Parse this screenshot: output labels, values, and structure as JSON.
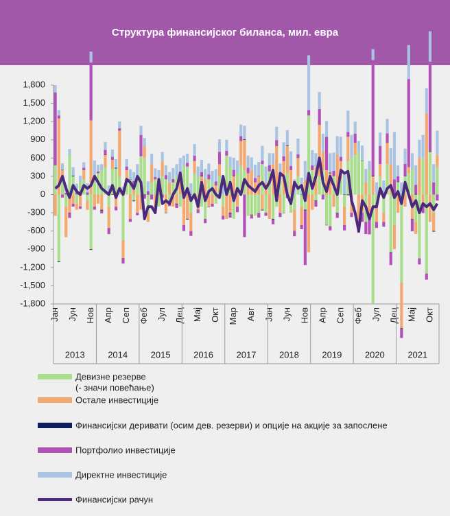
{
  "chart_data": {
    "type": "bar",
    "title": "Структура финансијског биланса, мил. евра",
    "categories": [
      "Јан",
      null,
      null,
      null,
      null,
      "Јун",
      null,
      null,
      null,
      null,
      "Нов",
      null,
      null,
      null,
      null,
      "Апр",
      null,
      null,
      null,
      null,
      "Сеп",
      null,
      null,
      null,
      null,
      "Феб",
      null,
      null,
      null,
      null,
      "Јул",
      null,
      null,
      null,
      null,
      "Дец",
      null,
      null,
      null,
      null,
      "Мај",
      null,
      null,
      null,
      null,
      "Окт",
      null,
      null,
      null,
      null,
      "Мар",
      null,
      null,
      null,
      null,
      "Авг",
      null,
      null,
      null,
      null,
      "Јан",
      null,
      null,
      null,
      null,
      "Јун",
      null,
      null,
      null,
      null,
      "Нов",
      null,
      null,
      null,
      null,
      "Апр",
      null,
      null,
      null,
      null,
      "Сеп",
      null,
      null,
      null,
      null,
      "Феб",
      null,
      null,
      null,
      null,
      "Јул",
      null,
      null,
      null,
      null,
      "Дец",
      null,
      null,
      null,
      null,
      "Мај",
      null,
      null,
      null,
      null,
      "Окт",
      null,
      null
    ],
    "years": [
      "2013",
      "2014",
      "2015",
      "2016",
      "2017",
      "2018",
      "2019",
      "2020",
      "2021"
    ],
    "ylim": [
      -1800,
      1800
    ],
    "yticks": [
      {
        "value": -1800,
        "label": "-1,800"
      },
      {
        "value": -1500,
        "label": "-1,500"
      },
      {
        "value": -1200,
        "label": "-1,200"
      },
      -900,
      -600,
      -300,
      0,
      300,
      600,
      900,
      {
        "value": 1200,
        "label": "1,200"
      },
      {
        "value": 1500,
        "label": "1,500"
      },
      {
        "value": 1800,
        "label": "1,800"
      }
    ],
    "grid": false,
    "series": [
      {
        "name": "Девизне резерве",
        "note": "(- значи повећање)",
        "color": "#a9df8c",
        "values": [
          480,
          -1100,
          300,
          -200,
          650,
          300,
          -150,
          200,
          250,
          -100,
          -900,
          300,
          350,
          400,
          450,
          -200,
          420,
          430,
          300,
          -750,
          200,
          250,
          -100,
          300,
          630,
          600,
          -300,
          200,
          250,
          -200,
          300,
          250,
          -150,
          200,
          300,
          -200,
          470,
          460,
          -300,
          350,
          300,
          -200,
          -400,
          250,
          200,
          -150,
          300,
          -200,
          640,
          460,
          -400,
          350,
          480,
          400,
          -350,
          -330,
          -350,
          -300,
          500,
          -300,
          380,
          -400,
          -200,
          250,
          -300,
          350,
          -300,
          -250,
          300,
          -200,
          -250,
          1300,
          400,
          -100,
          300,
          400,
          -500,
          -520,
          300,
          -300,
          250,
          -200,
          550,
          600,
          650,
          700,
          550,
          -450,
          400,
          -1800,
          -200,
          300,
          -300,
          500,
          -950,
          -500,
          200,
          -1450,
          300,
          350,
          400,
          -450,
          -1050,
          600,
          -1300,
          700,
          -300,
          450
        ]
      },
      {
        "name": "Остале инвестиције",
        "color": "#f4a86e",
        "values": [
          -350,
          1250,
          100,
          -500,
          -300,
          -150,
          -100,
          -200,
          150,
          -150,
          1220,
          -200,
          -150,
          -250,
          200,
          -350,
          150,
          -200,
          750,
          -300,
          200,
          -400,
          150,
          -300,
          -250,
          200,
          -150,
          300,
          -200,
          150,
          250,
          -300,
          200,
          -200,
          -150,
          300,
          -500,
          -400,
          -300,
          200,
          -250,
          300,
          250,
          -200,
          -150,
          150,
          200,
          -150,
          -400,
          -300,
          300,
          -200,
          400,
          500,
          350,
          400,
          200,
          300,
          -250,
          200,
          -400,
          500,
          800,
          -300,
          550,
          450,
          400,
          -350,
          300,
          -300,
          250,
          -950,
          -250,
          450,
          850,
          300,
          400,
          350,
          -200,
          650,
          300,
          -300,
          400,
          -300,
          200,
          -500,
          -300,
          200,
          -350,
          300,
          -250,
          200,
          -150,
          350,
          500,
          -400,
          -300,
          -750,
          -200,
          100,
          -400,
          -200,
          600,
          -150,
          1330,
          -450,
          -300,
          200
        ]
      },
      {
        "name": "Финансијски деривати (осим дев. резерви) и опције на акције за запослене",
        "color": "#0f1f5c",
        "values": [
          0,
          -10,
          5,
          0,
          -5,
          10,
          0,
          -5,
          0,
          5,
          -10,
          0,
          0,
          -10,
          5,
          0,
          -5,
          10,
          0,
          -5,
          0,
          5,
          -10,
          0,
          0,
          -10,
          5,
          0,
          -5,
          10,
          0,
          -5,
          0,
          5,
          -10,
          0,
          0,
          -10,
          5,
          0,
          -5,
          10,
          0,
          -5,
          0,
          5,
          -10,
          0,
          0,
          -10,
          5,
          0,
          -5,
          10,
          0,
          -5,
          0,
          5,
          -10,
          0,
          0,
          -10,
          5,
          0,
          -5,
          10,
          0,
          -5,
          0,
          5,
          -10,
          0,
          0,
          -10,
          5,
          0,
          -5,
          10,
          0,
          -5,
          0,
          5,
          -10,
          0,
          0,
          -10,
          5,
          0,
          -5,
          10,
          0,
          -5,
          0,
          5,
          -10,
          0,
          0,
          -10,
          5,
          0,
          -5,
          10,
          0,
          -5,
          0,
          5,
          -10,
          0
        ]
      },
      {
        "name": "Портфолио инвестиције",
        "color": "#b350b8",
        "values": [
          1200,
          50,
          -50,
          30,
          -80,
          -50,
          60,
          -30,
          40,
          30,
          950,
          -50,
          30,
          -50,
          80,
          -100,
          50,
          -60,
          40,
          -80,
          60,
          -50,
          70,
          -40,
          350,
          -60,
          50,
          -80,
          40,
          60,
          -50,
          70,
          -40,
          50,
          -60,
          80,
          -100,
          60,
          -80,
          90,
          -50,
          60,
          -70,
          80,
          -50,
          60,
          200,
          -60,
          80,
          -70,
          100,
          -90,
          80,
          -700,
          90,
          -60,
          70,
          -80,
          60,
          -50,
          100,
          -80,
          90,
          -70,
          80,
          -60,
          70,
          -80,
          60,
          -70,
          -900,
          90,
          80,
          -90,
          250,
          -80,
          550,
          -70,
          90,
          -80,
          70,
          -90,
          80,
          -70,
          150,
          -120,
          -150,
          -200,
          -300,
          1900,
          -100,
          300,
          -80,
          150,
          -200,
          250,
          100,
          -150,
          200,
          1450,
          -200,
          150,
          -100,
          -150,
          -100,
          1480,
          200,
          -100
        ]
      },
      {
        "name": "Директне инвестиције",
        "color": "#a9c3e3",
        "values": [
          120,
          90,
          110,
          130,
          100,
          140,
          120,
          110,
          90,
          150,
          180,
          260,
          110,
          100,
          130,
          150,
          120,
          140,
          110,
          130,
          120,
          160,
          150,
          200,
          150,
          130,
          160,
          170,
          140,
          180,
          150,
          160,
          170,
          180,
          200,
          220,
          170,
          150,
          180,
          190,
          160,
          200,
          170,
          180,
          190,
          200,
          210,
          240,
          180,
          160,
          200,
          210,
          190,
          220,
          200,
          210,
          220,
          230,
          240,
          260,
          200,
          180,
          220,
          260,
          230,
          250,
          240,
          250,
          260,
          270,
          300,
          900,
          250,
          230,
          280,
          300,
          260,
          320,
          300,
          310,
          330,
          340,
          350,
          380,
          200,
          180,
          250,
          220,
          150,
          180,
          200,
          220,
          230,
          240,
          260,
          780,
          180,
          200,
          250,
          560,
          280,
          320,
          300,
          380,
          420,
          500,
          300,
          400
        ]
      },
      {
        "name": "Финансијски рачун",
        "type": "line",
        "color": "#4b2a7e",
        "values": [
          100,
          150,
          300,
          100,
          -50,
          150,
          50,
          0,
          150,
          100,
          150,
          300,
          200,
          100,
          50,
          0,
          150,
          -50,
          100,
          0,
          250,
          200,
          100,
          300,
          200,
          -400,
          -200,
          -200,
          -300,
          250,
          -150,
          -100,
          -150,
          0,
          100,
          350,
          -50,
          100,
          -100,
          0,
          -200,
          200,
          -100,
          50,
          100,
          0,
          -50,
          300,
          0,
          200,
          -100,
          100,
          0,
          250,
          150,
          100,
          50,
          150,
          200,
          100,
          200,
          400,
          -100,
          350,
          300,
          0,
          -150,
          200,
          100,
          150,
          -100,
          350,
          100,
          300,
          600,
          200,
          50,
          300,
          150,
          0,
          400,
          350,
          380,
          -100,
          -300,
          -600,
          -100,
          -200,
          -400,
          -200,
          -200,
          100,
          -50,
          100,
          150,
          -50,
          50,
          -150,
          200,
          0,
          -200,
          -100,
          -300,
          -150,
          -200,
          -150,
          -250,
          -150
        ]
      }
    ]
  }
}
